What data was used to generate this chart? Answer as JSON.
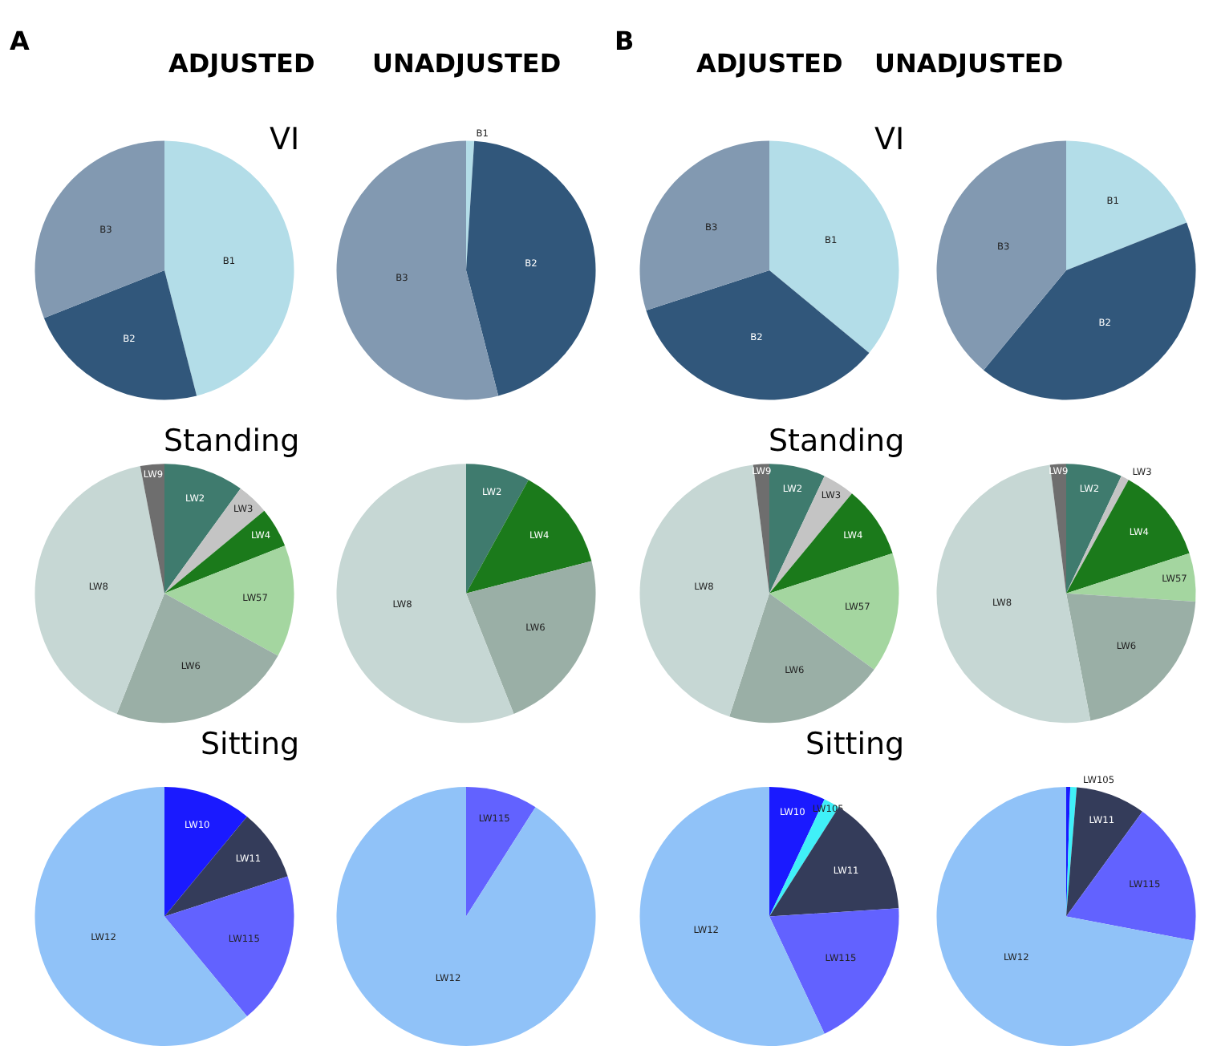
{
  "chart_data": [
    {
      "type": "pie",
      "title": "ADJUSTED",
      "subtitle": "VI",
      "annotations": [
        "A"
      ],
      "categories": [
        "B1",
        "B2",
        "B3"
      ],
      "values": [
        46,
        23,
        31
      ],
      "colors": [
        "#b3dde8",
        "#31577b",
        "#8299b1"
      ]
    },
    {
      "type": "pie",
      "title": "UNADJUSTED",
      "categories": [
        "B1",
        "B2",
        "B3"
      ],
      "values": [
        1,
        45,
        54
      ],
      "colors": [
        "#b3dde8",
        "#31577b",
        "#8299b1"
      ]
    },
    {
      "type": "pie",
      "title": "ADJUSTED",
      "subtitle": "VI",
      "annotations": [
        "B"
      ],
      "categories": [
        "B1",
        "B2",
        "B3"
      ],
      "values": [
        36,
        34,
        30
      ],
      "colors": [
        "#b3dde8",
        "#31577b",
        "#8299b1"
      ]
    },
    {
      "type": "pie",
      "title": "UNADJUSTED",
      "categories": [
        "B1",
        "B2",
        "B3"
      ],
      "values": [
        19,
        42,
        39
      ],
      "colors": [
        "#b3dde8",
        "#31577b",
        "#8299b1"
      ]
    },
    {
      "type": "pie",
      "subtitle": "Standing",
      "categories": [
        "LW2",
        "LW3",
        "LW4",
        "LW57",
        "LW6",
        "LW8",
        "LW9"
      ],
      "values": [
        10,
        4,
        5,
        14,
        23,
        41,
        3
      ],
      "colors": [
        "#3f7b6e",
        "#c4c4c4",
        "#1b7a1b",
        "#a4d6a0",
        "#9aafa6",
        "#c6d7d4",
        "#6e6e6e"
      ]
    },
    {
      "type": "pie",
      "categories": [
        "LW2",
        "LW4",
        "LW6",
        "LW8"
      ],
      "values": [
        8,
        13,
        23,
        56
      ],
      "colors": [
        "#3f7b6e",
        "#1b7a1b",
        "#9aafa6",
        "#c6d7d4"
      ]
    },
    {
      "type": "pie",
      "subtitle": "Standing",
      "categories": [
        "LW2",
        "LW3",
        "LW4",
        "LW57",
        "LW6",
        "LW8",
        "LW9"
      ],
      "values": [
        7,
        4,
        9,
        15,
        20,
        43,
        2
      ],
      "colors": [
        "#3f7b6e",
        "#c4c4c4",
        "#1b7a1b",
        "#a4d6a0",
        "#9aafa6",
        "#c6d7d4",
        "#6e6e6e"
      ]
    },
    {
      "type": "pie",
      "categories": [
        "LW2",
        "LW3",
        "LW4",
        "LW57",
        "LW6",
        "LW8",
        "LW9"
      ],
      "values": [
        7,
        1,
        12,
        6,
        21,
        51,
        2
      ],
      "colors": [
        "#3f7b6e",
        "#c4c4c4",
        "#1b7a1b",
        "#a4d6a0",
        "#9aafa6",
        "#c6d7d4",
        "#6e6e6e"
      ]
    },
    {
      "type": "pie",
      "subtitle": "Sitting",
      "categories": [
        "LW10",
        "LW11",
        "LW115",
        "LW12"
      ],
      "values": [
        11,
        9,
        19,
        61
      ],
      "colors": [
        "#1a1aff",
        "#343c5a",
        "#6262ff",
        "#90c2f8"
      ]
    },
    {
      "type": "pie",
      "categories": [
        "LW115",
        "LW12"
      ],
      "values": [
        9,
        91
      ],
      "colors": [
        "#6262ff",
        "#90c2f8"
      ]
    },
    {
      "type": "pie",
      "subtitle": "Sitting",
      "categories": [
        "LW10",
        "LW105",
        "LW11",
        "LW115",
        "LW12"
      ],
      "values": [
        7,
        2,
        15,
        19,
        57
      ],
      "colors": [
        "#1a1aff",
        "#40f0f8",
        "#343c5a",
        "#6262ff",
        "#90c2f8"
      ]
    },
    {
      "type": "pie",
      "categories": [
        null,
        "LW105",
        "LW11",
        "LW115",
        "LW12"
      ],
      "values": [
        0.5,
        0.8,
        8.7,
        18,
        72
      ],
      "colors": [
        "#1a1aff",
        "#40f0f8",
        "#343c5a",
        "#6262ff",
        "#90c2f8"
      ]
    }
  ]
}
